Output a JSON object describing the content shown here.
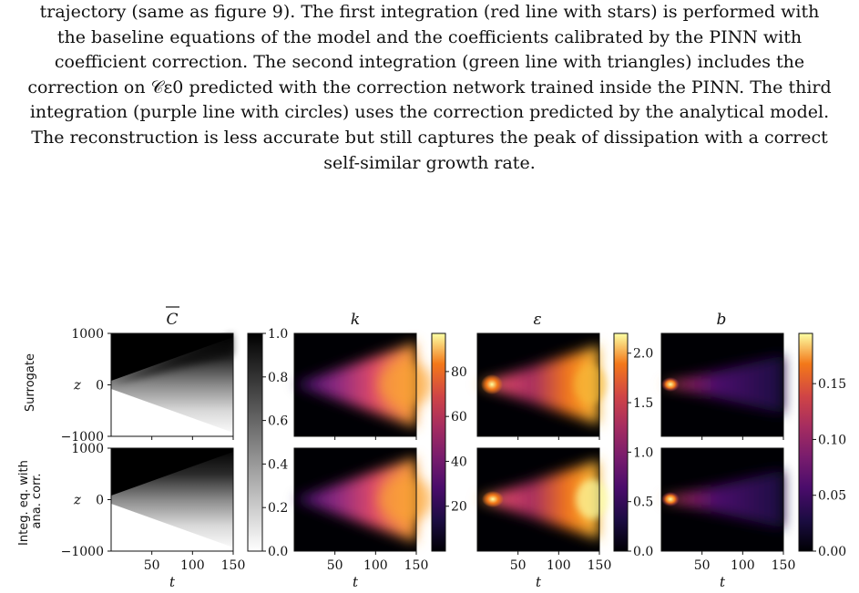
{
  "caption": {
    "lines": [
      "trajectory (same as figure 9). The first integration (red line with stars) is performed with",
      "the baseline equations of the model and the coefficients calibrated by the PINN with",
      "coefficient correction. The second integration (green line with triangles) includes the",
      "correction on 𝒞ε0 predicted with the correction network trained inside the PINN. The third",
      "integration (purple line with circles) uses the correction predicted by the analytical model.",
      "The reconstruction is less accurate but still captures the peak of dissipation with a correct",
      "self-similar growth rate."
    ]
  },
  "figure": {
    "row_labels": [
      "Surrogate",
      "Integ. eq. with ana. corr."
    ],
    "y_axis_label": "z",
    "x_axis_label": "t",
    "y_tick_labels": [
      "1000",
      "0",
      "−1000"
    ],
    "x_tick_labels": [
      "50",
      "100",
      "150"
    ],
    "panels": [
      {
        "title": "C",
        "colormap": "gray",
        "colorbar_ticks": [
          "0.0",
          "0.2",
          "0.4",
          "0.6",
          "0.8",
          "1.0"
        ]
      },
      {
        "title": "k",
        "colormap": "inferno",
        "colorbar_ticks": [
          "20",
          "40",
          "60",
          "80"
        ]
      },
      {
        "title": "ε",
        "colormap": "inferno",
        "colorbar_ticks": [
          "0.0",
          "0.5",
          "1.0",
          "1.5",
          "2.0"
        ]
      },
      {
        "title": "b",
        "colormap": "inferno",
        "colorbar_ticks": [
          "0.00",
          "0.05",
          "0.10",
          "0.15"
        ]
      }
    ]
  },
  "chart_data": {
    "type": "heatmap",
    "x": {
      "label": "t",
      "range": [
        0,
        150
      ],
      "ticks": [
        50,
        100,
        150
      ]
    },
    "y": {
      "label": "z",
      "range": [
        -1000,
        1000
      ],
      "ticks": [
        -1000,
        0,
        1000
      ]
    },
    "rows": [
      "Surrogate",
      "Integ. eq. with ana. corr."
    ],
    "fields": [
      {
        "name": "C",
        "colorbar_range": [
          0.0,
          1.0
        ],
        "colorbar_ticks": [
          0.0,
          0.2,
          0.4,
          0.6,
          0.8,
          1.0
        ]
      },
      {
        "name": "k",
        "colorbar_range": [
          0,
          97
        ],
        "colorbar_ticks": [
          20,
          40,
          60,
          80
        ]
      },
      {
        "name": "ε",
        "colorbar_range": [
          0.0,
          2.2
        ],
        "colorbar_ticks": [
          0.0,
          0.5,
          1.0,
          1.5,
          2.0
        ]
      },
      {
        "name": "b",
        "colorbar_range": [
          0.0,
          0.195
        ],
        "colorbar_ticks": [
          0.0,
          0.05,
          0.1,
          0.15
        ]
      }
    ]
  }
}
